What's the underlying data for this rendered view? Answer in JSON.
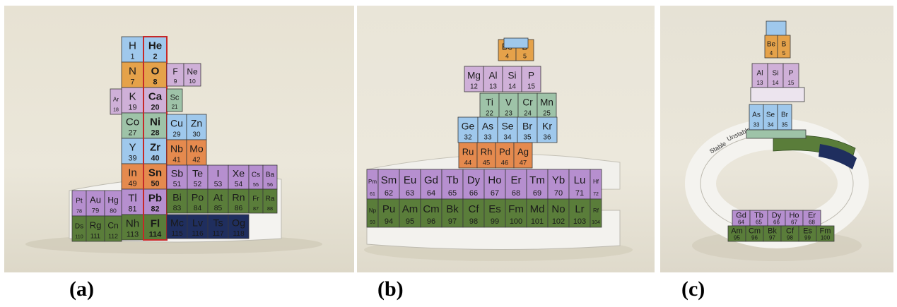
{
  "captions": {
    "a": "(a)",
    "b": "(b)",
    "c": "(c)"
  },
  "colors": {
    "s_block": "#9fc8ec",
    "p_block_orange": "#e5a24a",
    "p_block_pink": "#cfb0d8",
    "d_block_green": "#9ec3a8",
    "d_block_orange": "#e58a4e",
    "lanthanide_purple": "#b68fcf",
    "actinide_green": "#5a7d3a",
    "superheavy_navy": "#1f2e5e",
    "helium_border": "#c62828"
  },
  "panel_a": {
    "column_left": [
      {
        "s": "H",
        "n": "1",
        "c": "s_block"
      },
      {
        "s": "N",
        "n": "7",
        "c": "p_block_orange"
      },
      {
        "s": "K",
        "n": "19",
        "c": "p_block_pink"
      },
      {
        "s": "Co",
        "n": "27",
        "c": "d_block_green"
      },
      {
        "s": "Y",
        "n": "39",
        "c": "s_block"
      },
      {
        "s": "In",
        "n": "49",
        "c": "d_block_orange"
      },
      {
        "s": "Tl",
        "n": "81",
        "c": "lanthanide_purple"
      },
      {
        "s": "Nh",
        "n": "113",
        "c": "actinide_green"
      }
    ],
    "column_center": [
      {
        "s": "He",
        "n": "2",
        "c": "s_block"
      },
      {
        "s": "O",
        "n": "8",
        "c": "p_block_orange"
      },
      {
        "s": "Ca",
        "n": "20",
        "c": "p_block_pink"
      },
      {
        "s": "Ni",
        "n": "28",
        "c": "d_block_green"
      },
      {
        "s": "Zr",
        "n": "40",
        "c": "s_block"
      },
      {
        "s": "Sn",
        "n": "50",
        "c": "d_block_orange"
      },
      {
        "s": "Pb",
        "n": "82",
        "c": "lanthanide_purple"
      },
      {
        "s": "Fl",
        "n": "114",
        "c": "actinide_green"
      }
    ],
    "right_strips": [
      {
        "cells": [
          {
            "s": "F",
            "n": "9"
          },
          {
            "s": "Ne",
            "n": "10"
          }
        ],
        "c": "p_block_pink"
      },
      {
        "cells": [
          {
            "s": "Sc",
            "n": "21"
          }
        ],
        "c": "d_block_green"
      },
      {
        "cells": [
          {
            "s": "Cu",
            "n": "29"
          },
          {
            "s": "Zn",
            "n": "30"
          }
        ],
        "c": "s_block"
      },
      {
        "cells": [
          {
            "s": "Nb",
            "n": "41"
          },
          {
            "s": "Mo",
            "n": "42"
          }
        ],
        "c": "d_block_orange"
      },
      {
        "cells": [
          {
            "s": "Sb",
            "n": "51"
          },
          {
            "s": "Te",
            "n": "52"
          },
          {
            "s": "I",
            "n": "53"
          },
          {
            "s": "Xe",
            "n": "54"
          },
          {
            "s": "Cs",
            "n": "55"
          },
          {
            "s": "Ba",
            "n": "56"
          }
        ],
        "c": "lanthanide_purple"
      },
      {
        "cells": [
          {
            "s": "Bi",
            "n": "83"
          },
          {
            "s": "Po",
            "n": "84"
          },
          {
            "s": "At",
            "n": "85"
          },
          {
            "s": "Rn",
            "n": "86"
          },
          {
            "s": "Fr",
            "n": "87"
          },
          {
            "s": "Ra",
            "n": "88"
          }
        ],
        "c": "actinide_green"
      },
      {
        "cells": [
          {
            "s": "Mc",
            "n": "115"
          },
          {
            "s": "Lv",
            "n": "116"
          },
          {
            "s": "Ts",
            "n": "117"
          },
          {
            "s": "Og",
            "n": "118"
          }
        ],
        "c": "superheavy_navy"
      }
    ],
    "left_strips": [
      {
        "cells": [
          {
            "s": "Ar",
            "n": "18"
          }
        ],
        "c": "p_block_pink"
      },
      {
        "cells": [
          {
            "s": "Pt",
            "n": "78"
          },
          {
            "s": "Au",
            "n": "79"
          },
          {
            "s": "Hg",
            "n": "80"
          }
        ],
        "c": "lanthanide_purple"
      },
      {
        "cells": [
          {
            "s": "Ds",
            "n": "110"
          },
          {
            "s": "Rg",
            "n": "111"
          },
          {
            "s": "Cn",
            "n": "112"
          }
        ],
        "c": "actinide_green"
      }
    ]
  },
  "panel_b": {
    "helix_rows": [
      {
        "cells": [
          {
            "s": "Be",
            "n": "4"
          },
          {
            "s": "B",
            "n": "5"
          }
        ],
        "c": "p_block_orange"
      },
      {
        "cells": [
          {
            "s": "Mg",
            "n": "12"
          },
          {
            "s": "Al",
            "n": "13"
          },
          {
            "s": "Si",
            "n": "14"
          },
          {
            "s": "P",
            "n": "15"
          }
        ],
        "c": "p_block_pink"
      },
      {
        "cells": [
          {
            "s": "Ti",
            "n": "22"
          },
          {
            "s": "V",
            "n": "23"
          },
          {
            "s": "Cr",
            "n": "24"
          },
          {
            "s": "Mn",
            "n": "25"
          }
        ],
        "c": "d_block_green"
      },
      {
        "cells": [
          {
            "s": "Ge",
            "n": "32"
          },
          {
            "s": "As",
            "n": "33"
          },
          {
            "s": "Se",
            "n": "34"
          },
          {
            "s": "Br",
            "n": "35"
          },
          {
            "s": "Kr",
            "n": "36"
          }
        ],
        "c": "s_block"
      },
      {
        "cells": [
          {
            "s": "Ru",
            "n": "44"
          },
          {
            "s": "Rh",
            "n": "45"
          },
          {
            "s": "Pd",
            "n": "46"
          },
          {
            "s": "Ag",
            "n": "47"
          }
        ],
        "c": "d_block_orange"
      }
    ],
    "lanthanides": [
      {
        "s": "Pm",
        "n": "61"
      },
      {
        "s": "Sm",
        "n": "62"
      },
      {
        "s": "Eu",
        "n": "63"
      },
      {
        "s": "Gd",
        "n": "64"
      },
      {
        "s": "Tb",
        "n": "65"
      },
      {
        "s": "Dy",
        "n": "66"
      },
      {
        "s": "Ho",
        "n": "67"
      },
      {
        "s": "Er",
        "n": "68"
      },
      {
        "s": "Tm",
        "n": "69"
      },
      {
        "s": "Yb",
        "n": "70"
      },
      {
        "s": "Lu",
        "n": "71"
      },
      {
        "s": "Hf",
        "n": "72"
      }
    ],
    "actinides": [
      {
        "s": "Np",
        "n": "93"
      },
      {
        "s": "Pu",
        "n": "94"
      },
      {
        "s": "Am",
        "n": "95"
      },
      {
        "s": "Cm",
        "n": "96"
      },
      {
        "s": "Bk",
        "n": "97"
      },
      {
        "s": "Cf",
        "n": "98"
      },
      {
        "s": "Es",
        "n": "99"
      },
      {
        "s": "Fm",
        "n": "100"
      },
      {
        "s": "Md",
        "n": "101"
      },
      {
        "s": "No",
        "n": "102"
      },
      {
        "s": "Lr",
        "n": "103"
      },
      {
        "s": "Rf",
        "n": "104"
      }
    ]
  },
  "panel_c": {
    "tower_rows": [
      {
        "cells": [
          {
            "s": "Be",
            "n": "4"
          },
          {
            "s": "B",
            "n": "5"
          }
        ],
        "c": "p_block_orange"
      },
      {
        "cells": [
          {
            "s": "Al",
            "n": "13"
          },
          {
            "s": "Si",
            "n": "14"
          },
          {
            "s": "P",
            "n": "15"
          }
        ],
        "c": "p_block_pink"
      },
      {
        "cells": [
          {
            "s": "As",
            "n": "33"
          },
          {
            "s": "Se",
            "n": "34"
          },
          {
            "s": "Br",
            "n": "35"
          }
        ],
        "c": "s_block"
      }
    ],
    "ring_front_top": [
      {
        "s": "Gd",
        "n": "64"
      },
      {
        "s": "Tb",
        "n": "65"
      },
      {
        "s": "Dy",
        "n": "66"
      },
      {
        "s": "Ho",
        "n": "67"
      },
      {
        "s": "Er",
        "n": "68"
      }
    ],
    "ring_front_bottom": [
      {
        "s": "Am",
        "n": "95"
      },
      {
        "s": "Cm",
        "n": "96"
      },
      {
        "s": "Bk",
        "n": "97"
      },
      {
        "s": "Cf",
        "n": "98"
      },
      {
        "s": "Es",
        "n": "99"
      },
      {
        "s": "Fm",
        "n": "100"
      }
    ],
    "ring_labels": {
      "left": "Stable",
      "right": "Unstable"
    }
  }
}
